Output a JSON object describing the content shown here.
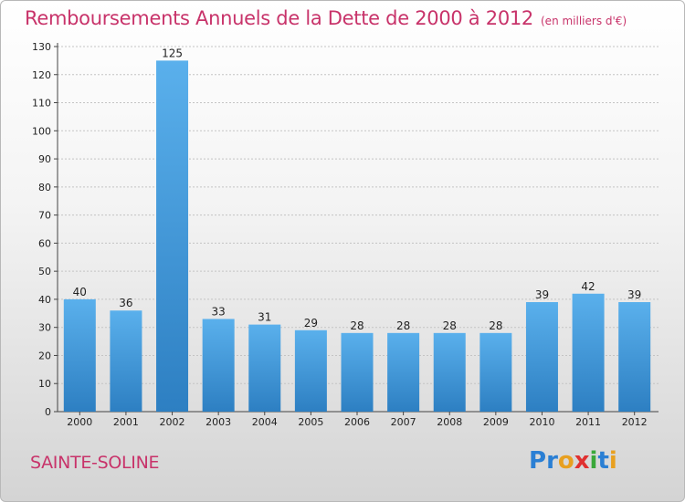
{
  "header": {
    "title": "Remboursements Annuels de la Dette de 2000 à 2012",
    "unit": "(en milliers d'€)"
  },
  "footer": {
    "commune": "SAINTE-SOLINE",
    "logo_letters": [
      {
        "ch": "P",
        "color": "#2a7fd4"
      },
      {
        "ch": "r",
        "color": "#2a7fd4"
      },
      {
        "ch": "o",
        "color": "#e8a020"
      },
      {
        "ch": "x",
        "color": "#e03030"
      },
      {
        "ch": "i",
        "color": "#3aa83a"
      },
      {
        "ch": "t",
        "color": "#2a7fd4"
      },
      {
        "ch": "i",
        "color": "#e8a020"
      }
    ]
  },
  "colors": {
    "bar_top": "#5ab0ec",
    "bar_bottom": "#2d7fc2",
    "title": "#c8336a",
    "grid": "#c4c4c4"
  },
  "chart_data": {
    "type": "bar",
    "title": "Remboursements Annuels de la Dette de 2000 à 2012",
    "subtitle": "(en milliers d'€)",
    "xlabel": "",
    "ylabel": "",
    "categories": [
      "2000",
      "2001",
      "2002",
      "2003",
      "2004",
      "2005",
      "2006",
      "2007",
      "2008",
      "2009",
      "2010",
      "2011",
      "2012"
    ],
    "values": [
      40,
      36,
      125,
      33,
      31,
      29,
      28,
      28,
      28,
      28,
      39,
      42,
      39
    ],
    "ylim": [
      0,
      130
    ],
    "yticks": [
      0,
      10,
      20,
      30,
      40,
      50,
      60,
      70,
      80,
      90,
      100,
      110,
      120,
      130
    ],
    "grid": true,
    "data_labels": true
  }
}
